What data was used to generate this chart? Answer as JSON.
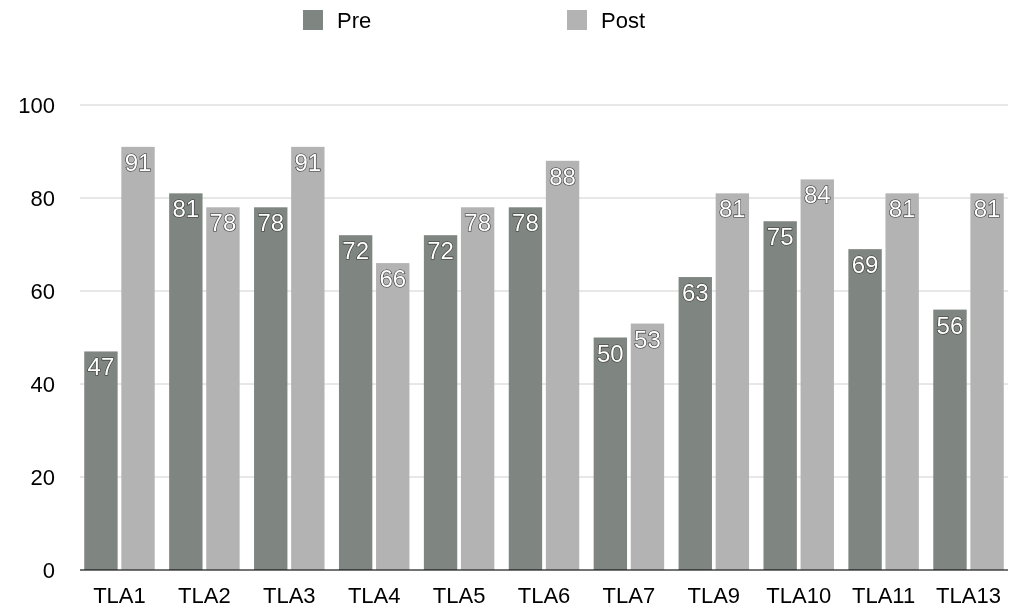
{
  "chart_data": {
    "type": "bar",
    "categories": [
      "TLA1",
      "TLA2",
      "TLA3",
      "TLA4",
      "TLA5",
      "TLA6",
      "TLA7",
      "TLA9",
      "TLA10",
      "TLA11",
      "TLA13"
    ],
    "series": [
      {
        "name": "Pre",
        "color": "#7f8580",
        "values": [
          47,
          81,
          78,
          72,
          72,
          78,
          50,
          63,
          75,
          69,
          56
        ]
      },
      {
        "name": "Post",
        "color": "#b3b3b3",
        "values": [
          91,
          78,
          91,
          66,
          78,
          88,
          53,
          81,
          84,
          81,
          81
        ]
      }
    ],
    "ylim": [
      0,
      100
    ],
    "yticks": [
      0,
      20,
      40,
      60,
      80,
      100
    ],
    "grid": "y",
    "legend": "top",
    "data_labels": true
  }
}
